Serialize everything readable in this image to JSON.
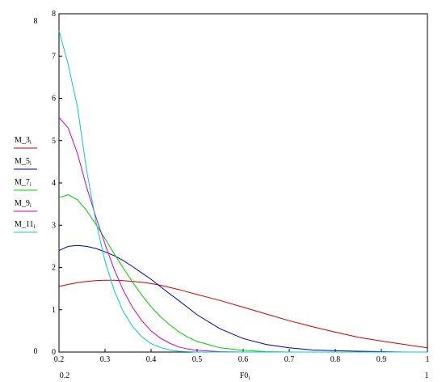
{
  "chart_data": {
    "type": "line",
    "x_axis": {
      "label": "F0",
      "label_subscript": "i",
      "range": [
        0.2,
        1
      ],
      "ticks": [
        "0.2",
        "0.3",
        "0.4",
        "0.5",
        "0.6",
        "0.7",
        "0.8",
        "0.9",
        "1"
      ],
      "min_label": "0.2",
      "max_label": "1"
    },
    "y_axis": {
      "range": [
        0,
        8
      ],
      "ticks": [
        "0",
        "1",
        "2",
        "3",
        "4",
        "5",
        "6",
        "7",
        "8"
      ],
      "min_label": "0",
      "max_label": "8"
    },
    "legend_position": "left",
    "grid": false,
    "x": [
      0.2,
      0.22,
      0.24,
      0.26,
      0.28,
      0.3,
      0.32,
      0.34,
      0.36,
      0.38,
      0.4,
      0.42,
      0.44,
      0.46,
      0.48,
      0.5,
      0.55,
      0.6,
      0.65,
      0.7,
      0.75,
      0.8,
      0.85,
      0.9,
      0.95,
      1.0
    ],
    "series": [
      {
        "name": "M_3",
        "subscript": "i",
        "color": "#cc0000",
        "values": [
          1.55,
          1.6,
          1.64,
          1.67,
          1.69,
          1.7,
          1.7,
          1.69,
          1.67,
          1.65,
          1.62,
          1.58,
          1.53,
          1.48,
          1.42,
          1.36,
          1.22,
          1.06,
          0.9,
          0.74,
          0.6,
          0.47,
          0.35,
          0.26,
          0.18,
          0.1
        ]
      },
      {
        "name": "M_5",
        "subscript": "i",
        "color": "#0000aa",
        "values": [
          2.4,
          2.5,
          2.52,
          2.5,
          2.45,
          2.37,
          2.28,
          2.16,
          2.02,
          1.87,
          1.72,
          1.55,
          1.38,
          1.22,
          1.05,
          0.88,
          0.55,
          0.32,
          0.18,
          0.1,
          0.05,
          0.03,
          0.02,
          0.01,
          0.0,
          0.0
        ]
      },
      {
        "name": "M_7",
        "subscript": "i",
        "color": "#00cc00",
        "values": [
          3.65,
          3.72,
          3.6,
          3.35,
          3.02,
          2.68,
          2.32,
          1.98,
          1.65,
          1.34,
          1.07,
          0.84,
          0.65,
          0.48,
          0.35,
          0.25,
          0.1,
          0.04,
          0.01,
          0.0,
          0.0,
          0.0,
          0.0,
          0.0,
          0.0,
          0.0
        ]
      },
      {
        "name": "M_9",
        "subscript": "i",
        "color": "#cc00cc",
        "values": [
          5.55,
          5.3,
          4.7,
          3.9,
          3.2,
          2.55,
          1.95,
          1.45,
          1.05,
          0.74,
          0.5,
          0.33,
          0.21,
          0.12,
          0.07,
          0.04,
          0.01,
          0.0,
          0.0,
          0.0,
          0.0,
          0.0,
          0.0,
          0.0,
          0.0,
          0.0
        ]
      },
      {
        "name": "M_11",
        "subscript": "i",
        "color": "#00cccc",
        "values": [
          7.6,
          6.8,
          5.8,
          4.3,
          3.1,
          2.15,
          1.45,
          0.95,
          0.6,
          0.36,
          0.2,
          0.11,
          0.05,
          0.02,
          0.01,
          0.0,
          0.0,
          0.0,
          0.0,
          0.0,
          0.0,
          0.0,
          0.0,
          0.0,
          0.0,
          0.0
        ]
      }
    ]
  }
}
